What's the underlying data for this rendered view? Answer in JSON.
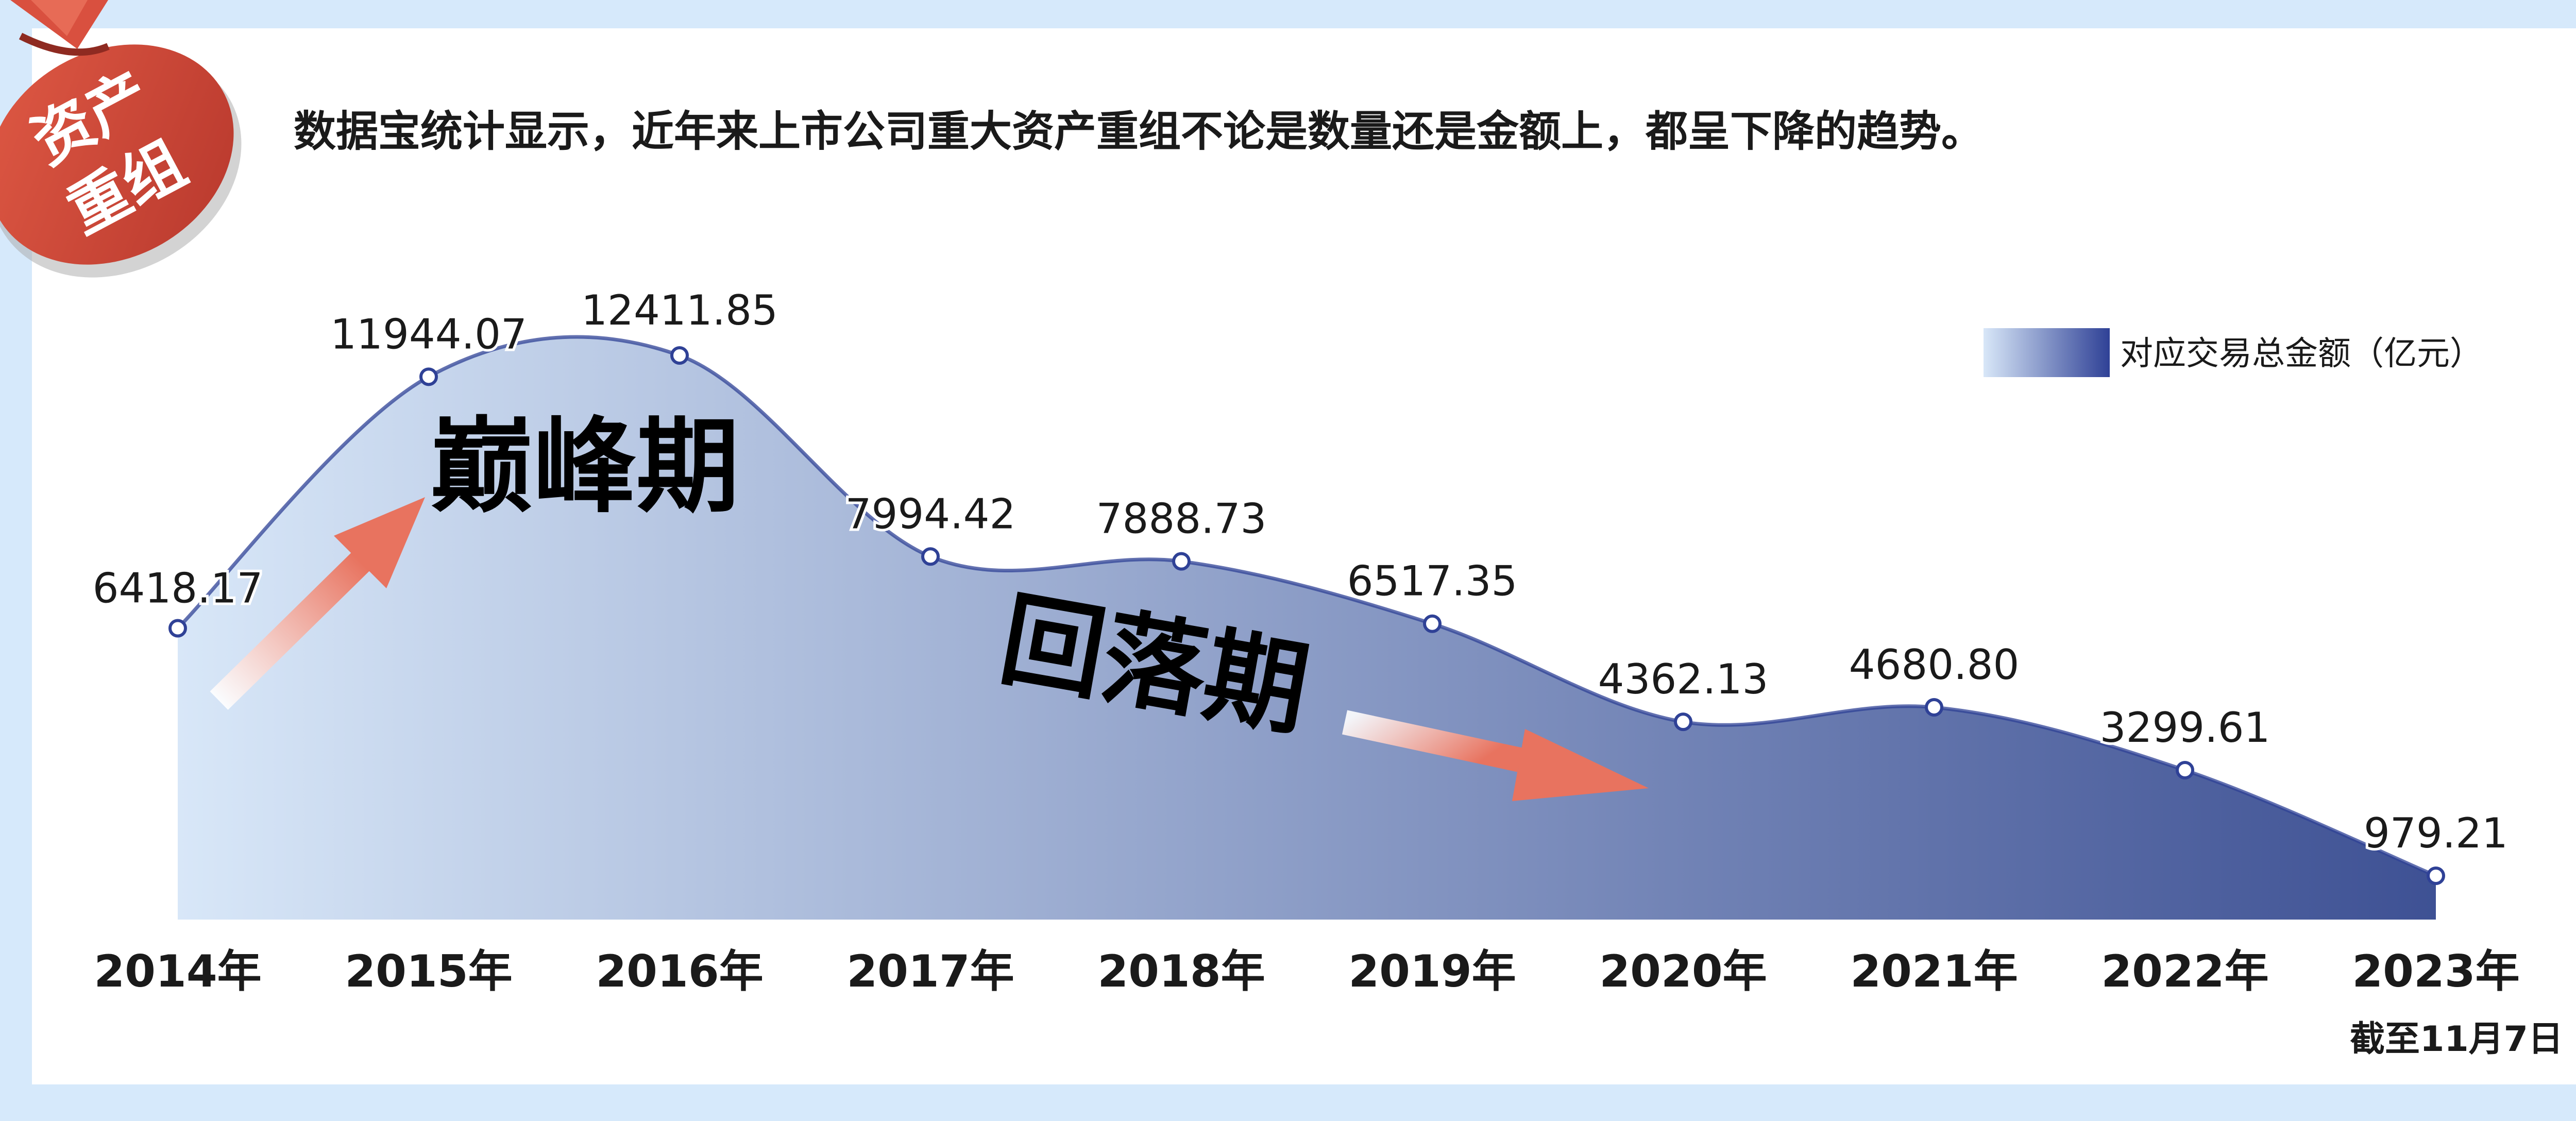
{
  "badge": {
    "line1": "资产",
    "line2": "重组"
  },
  "headline": "数据宝统计显示，近年来上市公司重大资产重组不论是数量还是金额上，都呈下降的趋势。",
  "annotations": {
    "peak": "巅峰期",
    "decline": "回落期"
  },
  "footnote": "截至11月7日",
  "colors": {
    "background": "#d6e9fb",
    "card": "#ffffff",
    "area_start": "#d8e7f8",
    "area_end": "#3e5194",
    "line": "#2f4196",
    "arrow": "#e8735f",
    "badge": "#d4483b"
  },
  "chart_data": {
    "type": "area",
    "categories": [
      "2014年",
      "2015年",
      "2016年",
      "2017年",
      "2018年",
      "2019年",
      "2020年",
      "2021年",
      "2022年",
      "2023年"
    ],
    "series": [
      {
        "name": "对应交易总金额（亿元）",
        "values": [
          6418.17,
          11944.07,
          12411.85,
          7994.42,
          7888.73,
          6517.35,
          4362.13,
          4680.8,
          3299.61,
          979.21
        ]
      }
    ],
    "data_labels": [
      "6418.17",
      "11944.07",
      "12411.85",
      "7994.42",
      "7888.73",
      "6517.35",
      "4362.13",
      "4680.80",
      "3299.61",
      "979.21"
    ],
    "legend_position": "top-right",
    "grid": false
  }
}
